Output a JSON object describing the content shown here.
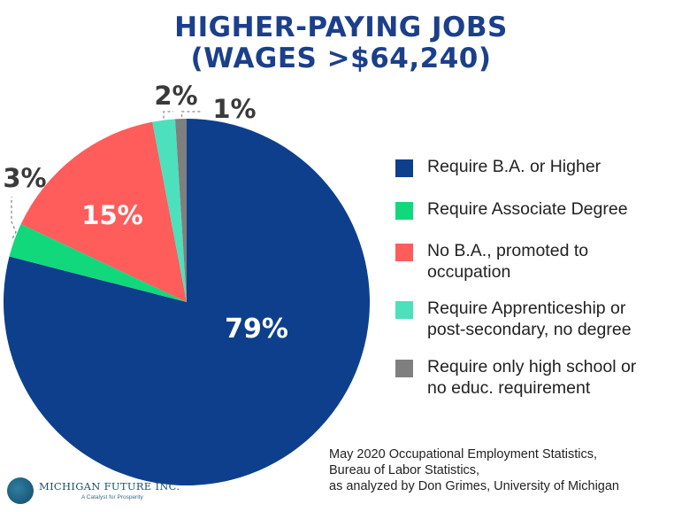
{
  "chart_data": {
    "type": "pie",
    "title": [
      "HIGHER-PAYING JOBS",
      "(WAGES >$64,240)"
    ],
    "slices": [
      {
        "label": "Require B.A. or Higher",
        "value": 79,
        "display": "79%",
        "color": "#0d3f8c"
      },
      {
        "label": "Require Associate Degree",
        "value": 3,
        "display": "3%",
        "color": "#12d87c"
      },
      {
        "label": "No B.A., promoted to\noccupation",
        "value": 15,
        "display": "15%",
        "color": "#ff5c5c"
      },
      {
        "label": "Require Apprenticeship or\npost-secondary, no degree",
        "value": 2,
        "display": "2%",
        "color": "#4de0bd"
      },
      {
        "label": "Require only high school or\nno educ. requirement",
        "value": 1,
        "display": "1%",
        "color": "#7f7f7f"
      }
    ],
    "legend_position": "right"
  },
  "source": "May 2020 Occupational Employment Statistics,\nBureau of Labor Statistics,\nas analyzed by Don Grimes, University of Michigan",
  "logo": {
    "name": "MICHIGAN FUTURE INC.",
    "tagline": "A Catalyst for Prosperity"
  }
}
